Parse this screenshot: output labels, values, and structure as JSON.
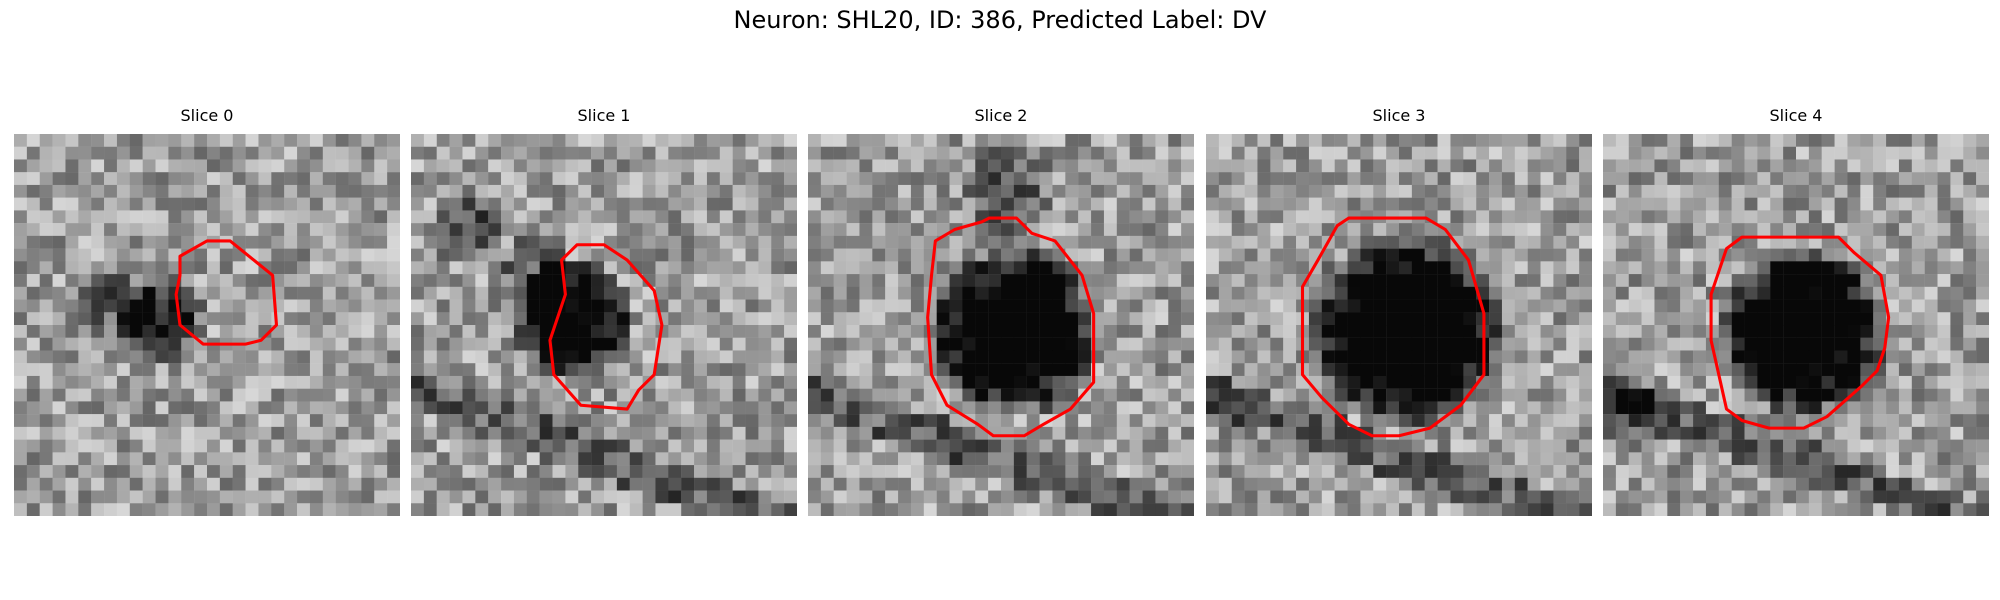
{
  "figure": {
    "title": "Neuron: SHL20, ID: 386, Predicted Label: DV",
    "contour_color": "#ff0000"
  },
  "panels": [
    {
      "title": "Slice 0"
    },
    {
      "title": "Slice 1"
    },
    {
      "title": "Slice 2"
    },
    {
      "title": "Slice 3"
    },
    {
      "title": "Slice 4"
    }
  ]
}
